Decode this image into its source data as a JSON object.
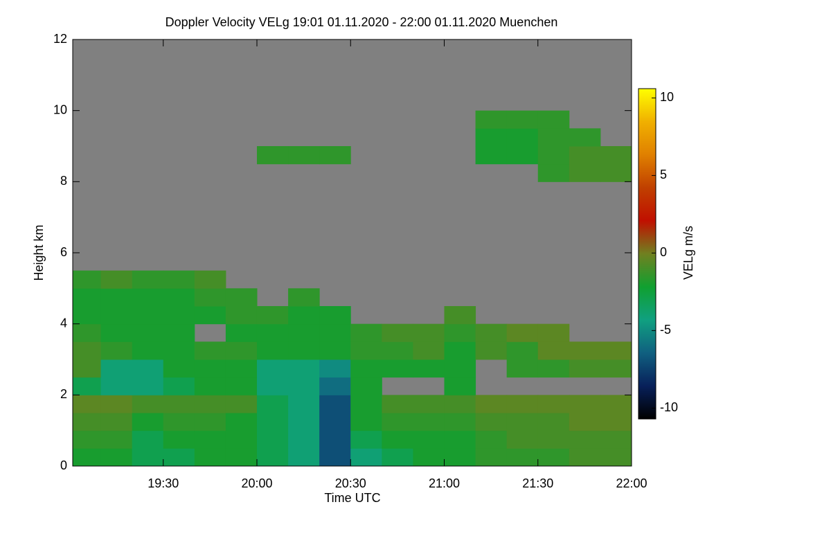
{
  "chart_data": {
    "type": "heatmap",
    "title": "Doppler Velocity VELg   19:01 01.11.2020 - 22:00 01.11.2020 Muenchen",
    "xlabel": "Time UTC",
    "ylabel": "Height km",
    "xlim": [
      1141,
      1320
    ],
    "xticks": [
      {
        "value": 1170,
        "label": "19:30"
      },
      {
        "value": 1200,
        "label": "20:00"
      },
      {
        "value": 1230,
        "label": "20:30"
      },
      {
        "value": 1260,
        "label": "21:00"
      },
      {
        "value": 1290,
        "label": "21:30"
      },
      {
        "value": 1320,
        "label": "22:00"
      }
    ],
    "ylim": [
      0,
      12
    ],
    "yticks": [
      0,
      2,
      4,
      6,
      8,
      10,
      12
    ],
    "x_edges": [
      1141,
      1150,
      1160,
      1170,
      1180,
      1190,
      1200,
      1210,
      1220,
      1230,
      1240,
      1250,
      1260,
      1270,
      1280,
      1290,
      1300,
      1310,
      1320
    ],
    "y_edges": [
      0,
      0.5,
      1,
      1.5,
      2,
      2.5,
      3,
      3.5,
      4,
      4.5,
      5,
      5.5,
      6,
      6.5,
      7,
      7.5,
      8,
      8.5,
      9,
      9.5,
      10
    ],
    "z": [
      [
        -2,
        -2,
        -3,
        -3,
        -2,
        -2,
        -3,
        -4,
        -7,
        -4,
        -3,
        -2,
        -2,
        -1.5,
        -1.5,
        -1.5,
        -1,
        -1
      ],
      [
        -1.5,
        -1.5,
        -3,
        -2,
        -2,
        -2,
        -3,
        -4,
        -7,
        -3,
        -2,
        -2,
        -2,
        -1.5,
        -1,
        -1,
        -1,
        -1
      ],
      [
        -1,
        -1,
        -2,
        -1.5,
        -1.5,
        -2,
        -3,
        -4,
        -7,
        -2,
        -1.5,
        -1.5,
        -1.5,
        -1,
        -1,
        -1,
        -0.5,
        -0.5
      ],
      [
        -0.5,
        -0.5,
        -1,
        -1,
        -1,
        -1,
        -3,
        -4,
        -7,
        -2,
        -1,
        -1,
        -1,
        -0.5,
        -0.5,
        -0.5,
        -0.5,
        -0.5
      ],
      [
        -3,
        -4,
        -4,
        -3,
        -2,
        -2,
        -4,
        -4,
        -6,
        -2,
        null,
        null,
        -2,
        null,
        null,
        null,
        null,
        null
      ],
      [
        -1,
        -4,
        -4,
        -2,
        -2,
        -2,
        -4,
        -4,
        -5,
        -2,
        -2,
        -2,
        -2,
        null,
        -1.5,
        -1.5,
        -1,
        -1
      ],
      [
        -1,
        -1.5,
        -2,
        -2,
        -1.5,
        -1.5,
        -2,
        -2,
        -2,
        -1.5,
        -1.5,
        -1,
        -2,
        -1,
        -1.5,
        -0.5,
        -0.5,
        -0.5
      ],
      [
        -1.5,
        -2,
        -2,
        -2,
        null,
        -2,
        -2,
        -2,
        -2,
        -1.5,
        -1,
        -1,
        -1.5,
        -1,
        -0.5,
        -0.5,
        null,
        null
      ],
      [
        -2,
        -2,
        -2,
        -2,
        -2,
        -1.5,
        -1.5,
        -2,
        -2,
        null,
        null,
        null,
        -1,
        null,
        null,
        null,
        null,
        null
      ],
      [
        -2,
        -2,
        -2,
        -2,
        -1.5,
        -1.5,
        null,
        -1.5,
        null,
        null,
        null,
        null,
        null,
        null,
        null,
        null,
        null,
        null
      ],
      [
        -1.5,
        -1,
        -1.5,
        -1.5,
        -1,
        null,
        null,
        null,
        null,
        null,
        null,
        null,
        null,
        null,
        null,
        null,
        null,
        null
      ],
      [
        null,
        null,
        null,
        null,
        null,
        null,
        null,
        null,
        null,
        null,
        null,
        null,
        null,
        null,
        null,
        null,
        null,
        null
      ],
      [
        null,
        null,
        null,
        null,
        null,
        null,
        null,
        null,
        null,
        null,
        null,
        null,
        null,
        null,
        null,
        null,
        null,
        null
      ],
      [
        null,
        null,
        null,
        null,
        null,
        null,
        null,
        null,
        null,
        null,
        null,
        null,
        null,
        null,
        null,
        null,
        null,
        null
      ],
      [
        null,
        null,
        null,
        null,
        null,
        null,
        null,
        null,
        null,
        null,
        null,
        null,
        null,
        null,
        null,
        null,
        null,
        null
      ],
      [
        null,
        null,
        null,
        null,
        null,
        null,
        null,
        null,
        null,
        null,
        null,
        null,
        null,
        null,
        null,
        null,
        null,
        null
      ],
      [
        null,
        null,
        null,
        null,
        null,
        null,
        null,
        null,
        null,
        null,
        null,
        null,
        null,
        null,
        null,
        -1.5,
        -1,
        -1
      ],
      [
        null,
        null,
        null,
        null,
        null,
        null,
        -1.5,
        -1.5,
        -1.5,
        null,
        null,
        null,
        null,
        -2,
        -2,
        -1.5,
        -1,
        -1
      ],
      [
        null,
        null,
        null,
        null,
        null,
        null,
        null,
        null,
        null,
        null,
        null,
        null,
        null,
        -2,
        -2,
        -1.5,
        -1.5,
        null
      ],
      [
        null,
        null,
        null,
        null,
        null,
        null,
        null,
        null,
        null,
        null,
        null,
        null,
        null,
        -1.5,
        -1.5,
        -1.5,
        null,
        null
      ]
    ],
    "nodata_color": "#808080",
    "colormap": [
      "#000000",
      "#08205a",
      "#106080",
      "#10a080",
      "#10a030",
      "#708020",
      "#c01000",
      "#c04000",
      "#e08000",
      "#f0b000",
      "#ffff00"
    ],
    "clim": [
      -10.7,
      10.6
    ],
    "cticks": [
      -10,
      -5,
      0,
      5,
      10
    ],
    "colorbar_label": "VELg m/s"
  }
}
